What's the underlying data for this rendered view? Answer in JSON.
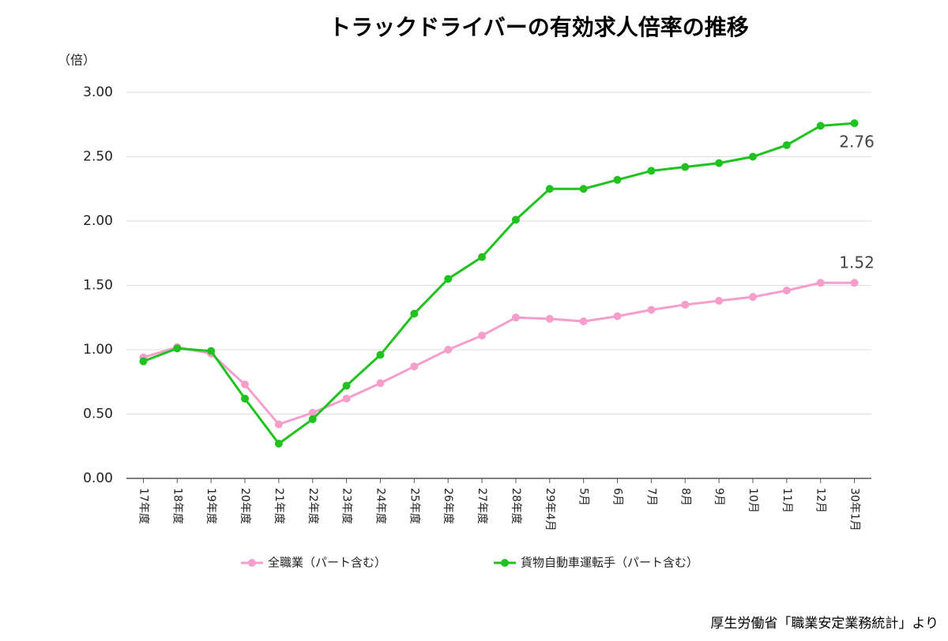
{
  "chart_data": {
    "type": "line",
    "title": "トラックドライバーの有効求人倍率の推移",
    "y_label": "（倍）",
    "source": "厚生労働省「職業安定業務統計」より",
    "categories": [
      "17年度",
      "18年度",
      "19年度",
      "20年度",
      "21年度",
      "22年度",
      "23年度",
      "24年度",
      "25年度",
      "26年度",
      "27年度",
      "28年度",
      "29年4月",
      "5月",
      "6月",
      "7月",
      "8月",
      "9月",
      "10月",
      "11月",
      "12月",
      "30年1月"
    ],
    "series": [
      {
        "name": "全職業（パート含む）",
        "color": "#f59ecb",
        "values": [
          0.94,
          1.02,
          0.97,
          0.73,
          0.42,
          0.51,
          0.62,
          0.74,
          0.87,
          1.0,
          1.11,
          1.25,
          1.24,
          1.22,
          1.26,
          1.31,
          1.35,
          1.38,
          1.41,
          1.46,
          1.52,
          1.52
        ],
        "value_labels": [
          null,
          null,
          null,
          null,
          null,
          null,
          null,
          null,
          null,
          null,
          null,
          null,
          null,
          null,
          null,
          null,
          null,
          null,
          null,
          null,
          null,
          "1.52"
        ]
      },
      {
        "name": "貨物自動車運転手（パート含む）",
        "color": "#1fc21f",
        "values": [
          0.91,
          1.01,
          0.99,
          0.62,
          0.27,
          0.46,
          0.72,
          0.96,
          1.28,
          1.55,
          1.72,
          2.01,
          2.25,
          2.25,
          2.32,
          2.39,
          2.42,
          2.45,
          2.5,
          2.59,
          2.74,
          2.76
        ],
        "value_labels": [
          null,
          null,
          null,
          null,
          null,
          null,
          null,
          null,
          null,
          null,
          null,
          null,
          null,
          null,
          null,
          null,
          null,
          null,
          null,
          null,
          null,
          "2.76"
        ]
      }
    ],
    "ylim": [
      0,
      3
    ],
    "yticks": [
      {
        "value": 0,
        "label": "0.00"
      },
      {
        "value": 0.5,
        "label": "0.50"
      },
      {
        "value": 1,
        "label": "1.00"
      },
      {
        "value": 1.5,
        "label": "1.50"
      },
      {
        "value": 2,
        "label": "2.00"
      },
      {
        "value": 2.5,
        "label": "2.50"
      },
      {
        "value": 3,
        "label": "3.00"
      }
    ],
    "grid": true,
    "legend": "bottom"
  }
}
